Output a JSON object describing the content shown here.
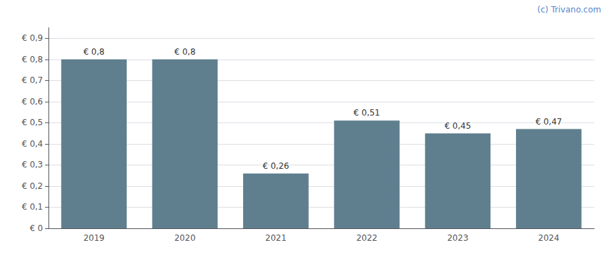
{
  "chart_data": {
    "type": "bar",
    "categories": [
      "2019",
      "2020",
      "2021",
      "2022",
      "2023",
      "2024"
    ],
    "values": [
      0.8,
      0.8,
      0.26,
      0.51,
      0.45,
      0.47
    ],
    "value_labels": [
      "€ 0,8",
      "€ 0,8",
      "€ 0,26",
      "€ 0,51",
      "€ 0,45",
      "€ 0,47"
    ],
    "color": "#5f7f8e",
    "ylim": [
      0,
      0.95
    ],
    "yticks": [
      {
        "value": 0,
        "label": "€ 0"
      },
      {
        "value": 0.1,
        "label": "€ 0,1"
      },
      {
        "value": 0.2,
        "label": "€ 0,2"
      },
      {
        "value": 0.3,
        "label": "€ 0,3"
      },
      {
        "value": 0.4,
        "label": "€ 0,4"
      },
      {
        "value": 0.5,
        "label": "€ 0,5"
      },
      {
        "value": 0.6,
        "label": "€ 0,6"
      },
      {
        "value": 0.7,
        "label": "€ 0,7"
      },
      {
        "value": 0.8,
        "label": "€ 0,8"
      },
      {
        "value": 0.9,
        "label": "€ 0,9"
      }
    ],
    "grid": true,
    "data_labels": true,
    "annotations": [
      "(c) Trivano.com"
    ]
  }
}
